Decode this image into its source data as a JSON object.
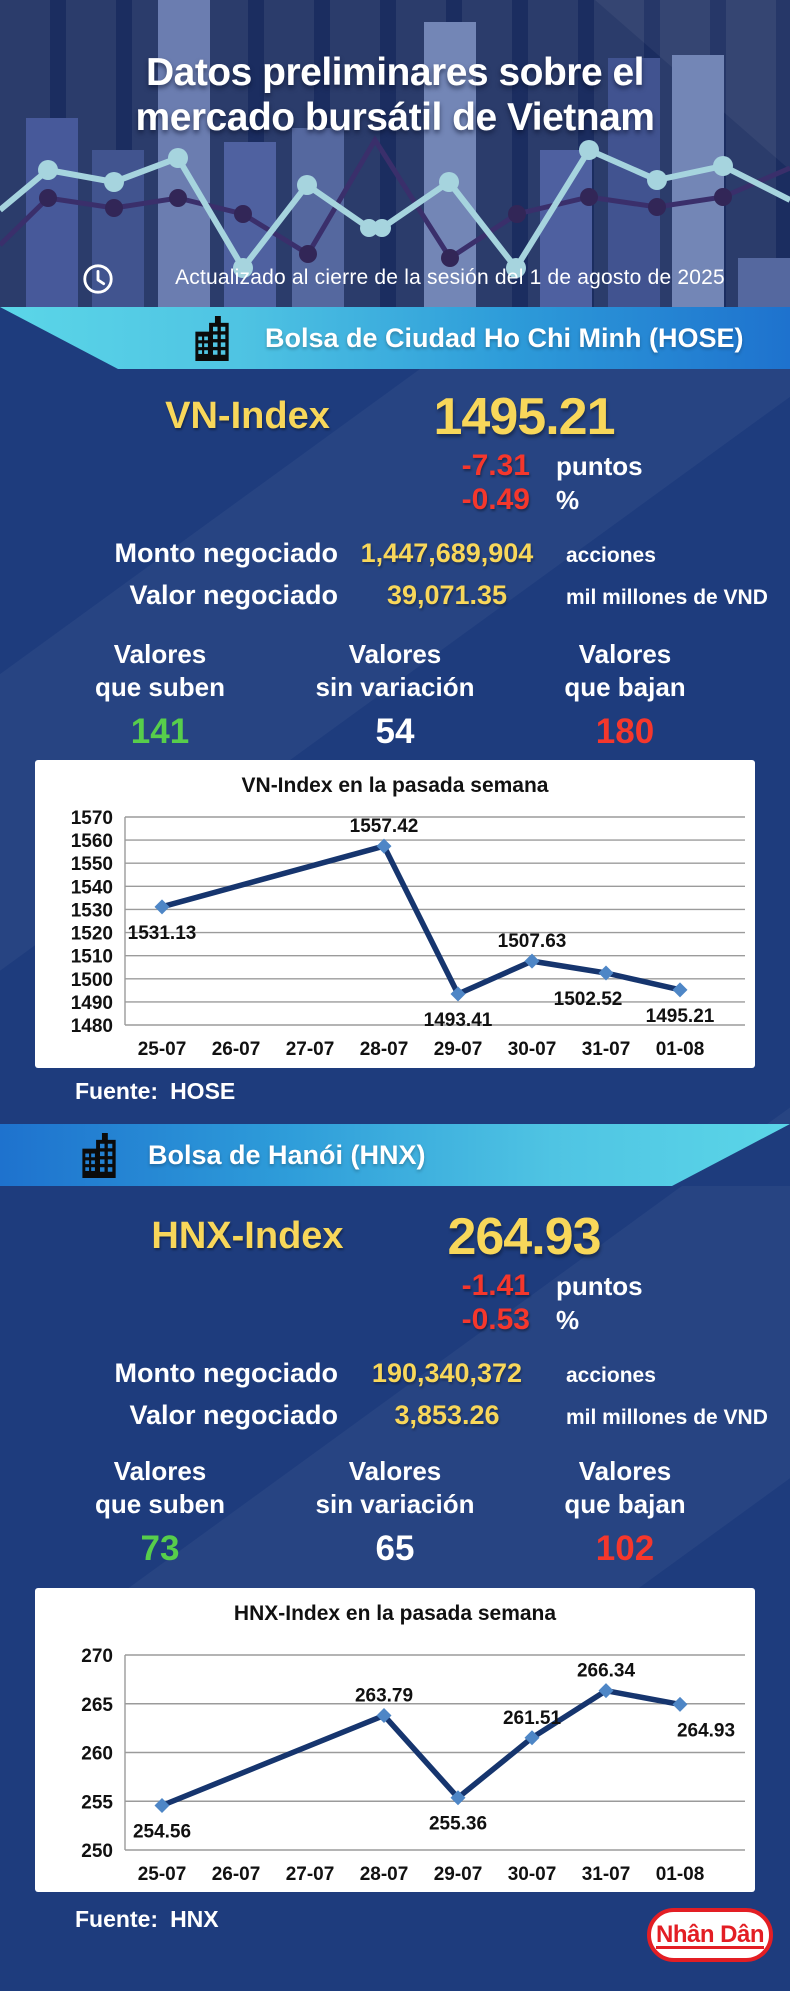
{
  "header": {
    "title_line1": "Datos preliminares sobre el",
    "title_line2": "mercado bursátil de Vietnam",
    "updated_note": "Actualizado al cierre de la sesión del 1 de agosto de 2025"
  },
  "colors": {
    "background_navy": "#1E3C7D",
    "accent_yellow": "#F8D75A",
    "negative_red": "#F5372C",
    "positive_green": "#57CE4B",
    "banner_cyan": "#5BD6E8",
    "banner_blue": "#1E72CE",
    "chart_line": "#16356E",
    "chart_marker": "#4E86C6",
    "logo_red": "#E31E24"
  },
  "icons": {
    "header_clock": "clock-icon",
    "banner_building": "building-icon"
  },
  "sections": [
    {
      "id": "hose",
      "banner_title": "Bolsa de Ciudad Ho Chi Minh (HOSE)",
      "index_label": "VN-Index",
      "index_value": "1495.21",
      "change_points": "-7.31",
      "points_unit": "puntos",
      "change_percent": "-0.49",
      "percent_unit": "%",
      "volume_label": "Monto negociado",
      "volume_value": "1,447,689,904",
      "volume_unit": "acciones",
      "turnover_label": "Valor negociado",
      "turnover_value": "39,071.35",
      "turnover_unit": "mil millones de VND",
      "breadth": {
        "up": {
          "label_line1": "Valores",
          "label_line2": "que suben",
          "value": "141"
        },
        "unchanged": {
          "label_line1": "Valores",
          "label_line2": "sin variación",
          "value": "54"
        },
        "down": {
          "label_line1": "Valores",
          "label_line2": "que bajan",
          "value": "180"
        }
      },
      "source_label": "Fuente:",
      "source_value": "HOSE"
    },
    {
      "id": "hnx",
      "banner_title": "Bolsa de Hanói (HNX)",
      "index_label": "HNX-Index",
      "index_value": "264.93",
      "change_points": "-1.41",
      "points_unit": "puntos",
      "change_percent": "-0.53",
      "percent_unit": "%",
      "volume_label": "Monto negociado",
      "volume_value": "190,340,372",
      "volume_unit": "acciones",
      "turnover_label": "Valor negociado",
      "turnover_value": "3,853.26",
      "turnover_unit": "mil millones de VND",
      "breadth": {
        "up": {
          "label_line1": "Valores",
          "label_line2": "que suben",
          "value": "73"
        },
        "unchanged": {
          "label_line1": "Valores",
          "label_line2": "sin variación",
          "value": "65"
        },
        "down": {
          "label_line1": "Valores",
          "label_line2": "que bajan",
          "value": "102"
        }
      },
      "source_label": "Fuente:",
      "source_value": "HNX"
    }
  ],
  "footer": {
    "logo_text": "Nhân Dân"
  },
  "chart_data": [
    {
      "type": "line",
      "title": "VN-Index en la pasada semana",
      "categories": [
        "25-07",
        "26-07",
        "27-07",
        "28-07",
        "29-07",
        "30-07",
        "31-07",
        "01-08"
      ],
      "series": [
        {
          "name": "VN-Index",
          "values": [
            1531.13,
            null,
            null,
            1557.42,
            1493.41,
            1507.63,
            1502.52,
            1495.21
          ]
        }
      ],
      "ylim": [
        1480,
        1570
      ],
      "ytick_step": 10,
      "yticks": [
        1570,
        1560,
        1550,
        1540,
        1530,
        1520,
        1510,
        1500,
        1490,
        1480
      ],
      "grid": true,
      "legend": "none",
      "marker": "diamond",
      "label_positions": [
        "below",
        null,
        null,
        "above",
        "below",
        "above",
        "below-left",
        "below"
      ]
    },
    {
      "type": "line",
      "title": "HNX-Index en la pasada semana",
      "categories": [
        "25-07",
        "26-07",
        "27-07",
        "28-07",
        "29-07",
        "30-07",
        "31-07",
        "01-08"
      ],
      "series": [
        {
          "name": "HNX-Index",
          "values": [
            254.56,
            null,
            null,
            263.79,
            255.36,
            261.51,
            266.34,
            264.93
          ]
        }
      ],
      "ylim": [
        250,
        270
      ],
      "ytick_step": 5,
      "yticks": [
        270,
        265,
        260,
        255,
        250
      ],
      "grid": true,
      "legend": "none",
      "marker": "diamond",
      "label_positions": [
        "below",
        null,
        null,
        "above",
        "below",
        "above",
        "above",
        "below-right"
      ]
    }
  ]
}
